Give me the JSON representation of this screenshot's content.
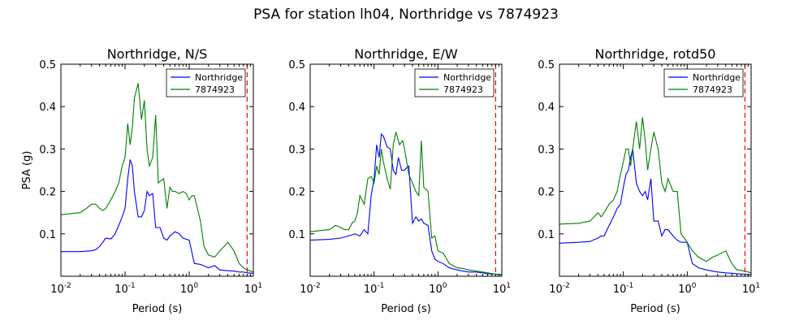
{
  "figure": {
    "title": "PSA for station lh04, Northridge vs 7874923"
  },
  "chart_data": [
    {
      "type": "line",
      "title": "Northridge, N/S",
      "xlabel": "Period (s)",
      "ylabel": "PSA (g)",
      "xscale": "log",
      "xlim": [
        0.01,
        10
      ],
      "ylim": [
        0,
        0.5
      ],
      "yticks": [
        "0.1",
        "0.2",
        "0.3",
        "0.4",
        "0.5"
      ],
      "xticks": [
        {
          "base": "10",
          "exp": "-2"
        },
        {
          "base": "10",
          "exp": "-1"
        },
        {
          "base": "10",
          "exp": "0"
        },
        {
          "base": "10",
          "exp": "1"
        }
      ],
      "legend": "top-right",
      "vline": {
        "x": 8.0,
        "color": "#ff0000",
        "style": "dashed"
      },
      "series": [
        {
          "name": "Northridge",
          "color": "#0000ff",
          "x": [
            0.01,
            0.02,
            0.03,
            0.035,
            0.04,
            0.045,
            0.05,
            0.06,
            0.07,
            0.08,
            0.09,
            0.1,
            0.11,
            0.12,
            0.13,
            0.14,
            0.16,
            0.18,
            0.2,
            0.22,
            0.24,
            0.27,
            0.3,
            0.35,
            0.4,
            0.45,
            0.5,
            0.6,
            0.7,
            0.8,
            1.0,
            1.2,
            1.5,
            2.0,
            2.5,
            3.0,
            4.0,
            5.0,
            6.0,
            7.0,
            8.0,
            10.0
          ],
          "y": [
            0.058,
            0.058,
            0.06,
            0.063,
            0.07,
            0.08,
            0.09,
            0.088,
            0.1,
            0.12,
            0.14,
            0.16,
            0.23,
            0.275,
            0.26,
            0.2,
            0.14,
            0.14,
            0.155,
            0.2,
            0.19,
            0.195,
            0.115,
            0.115,
            0.09,
            0.085,
            0.095,
            0.105,
            0.1,
            0.09,
            0.085,
            0.03,
            0.028,
            0.02,
            0.025,
            0.015,
            0.013,
            0.012,
            0.01,
            0.01,
            0.008,
            0.007
          ]
        },
        {
          "name": "7874923",
          "color": "#008000",
          "x": [
            0.01,
            0.02,
            0.025,
            0.03,
            0.035,
            0.04,
            0.045,
            0.05,
            0.06,
            0.07,
            0.08,
            0.09,
            0.1,
            0.11,
            0.12,
            0.13,
            0.14,
            0.16,
            0.18,
            0.2,
            0.22,
            0.24,
            0.27,
            0.3,
            0.33,
            0.36,
            0.4,
            0.45,
            0.5,
            0.55,
            0.6,
            0.7,
            0.8,
            0.9,
            1.0,
            1.1,
            1.2,
            1.5,
            1.7,
            2.0,
            2.5,
            3.0,
            3.5,
            4.0,
            5.0,
            6.0,
            7.0,
            8.0,
            10.0
          ],
          "y": [
            0.145,
            0.15,
            0.16,
            0.17,
            0.17,
            0.16,
            0.155,
            0.16,
            0.18,
            0.2,
            0.22,
            0.26,
            0.28,
            0.36,
            0.31,
            0.35,
            0.42,
            0.455,
            0.37,
            0.415,
            0.3,
            0.26,
            0.28,
            0.38,
            0.22,
            0.225,
            0.23,
            0.16,
            0.21,
            0.2,
            0.2,
            0.195,
            0.2,
            0.195,
            0.18,
            0.19,
            0.19,
            0.13,
            0.07,
            0.05,
            0.045,
            0.06,
            0.07,
            0.08,
            0.06,
            0.03,
            0.02,
            0.015,
            0.01
          ]
        }
      ]
    },
    {
      "type": "line",
      "title": "Northridge, E/W",
      "xlabel": "Period (s)",
      "ylabel": "",
      "xscale": "log",
      "xlim": [
        0.01,
        10
      ],
      "ylim": [
        0,
        0.5
      ],
      "yticks": [
        "0.1",
        "0.2",
        "0.3",
        "0.4",
        "0.5"
      ],
      "xticks": [
        {
          "base": "10",
          "exp": "-2"
        },
        {
          "base": "10",
          "exp": "-1"
        },
        {
          "base": "10",
          "exp": "0"
        },
        {
          "base": "10",
          "exp": "1"
        }
      ],
      "legend": "top-right",
      "vline": {
        "x": 8.0,
        "color": "#ff0000",
        "style": "dashed"
      },
      "series": [
        {
          "name": "Northridge",
          "color": "#0000ff",
          "x": [
            0.01,
            0.02,
            0.03,
            0.04,
            0.05,
            0.06,
            0.07,
            0.08,
            0.09,
            0.1,
            0.11,
            0.12,
            0.13,
            0.14,
            0.16,
            0.18,
            0.2,
            0.22,
            0.24,
            0.27,
            0.3,
            0.32,
            0.35,
            0.4,
            0.45,
            0.5,
            0.55,
            0.6,
            0.7,
            0.8,
            0.9,
            1.0,
            1.2,
            1.5,
            2.0,
            2.5,
            3.0,
            4.0,
            5.0,
            6.0,
            8.0,
            10.0
          ],
          "y": [
            0.085,
            0.087,
            0.09,
            0.095,
            0.1,
            0.095,
            0.11,
            0.1,
            0.19,
            0.23,
            0.31,
            0.28,
            0.335,
            0.33,
            0.305,
            0.3,
            0.25,
            0.24,
            0.28,
            0.25,
            0.25,
            0.255,
            0.26,
            0.125,
            0.14,
            0.13,
            0.135,
            0.125,
            0.12,
            0.06,
            0.04,
            0.035,
            0.03,
            0.02,
            0.015,
            0.012,
            0.01,
            0.01,
            0.008,
            0.006,
            0.005,
            0.004
          ]
        },
        {
          "name": "7874923",
          "color": "#008000",
          "x": [
            0.01,
            0.02,
            0.025,
            0.03,
            0.035,
            0.04,
            0.045,
            0.05,
            0.055,
            0.06,
            0.07,
            0.08,
            0.09,
            0.1,
            0.11,
            0.12,
            0.13,
            0.14,
            0.16,
            0.18,
            0.2,
            0.22,
            0.25,
            0.28,
            0.3,
            0.35,
            0.4,
            0.45,
            0.5,
            0.55,
            0.6,
            0.7,
            0.8,
            0.9,
            1.0,
            1.2,
            1.5,
            2.0,
            2.5,
            3.0,
            4.0,
            5.0,
            6.0,
            8.0,
            10.0
          ],
          "y": [
            0.105,
            0.11,
            0.12,
            0.115,
            0.11,
            0.11,
            0.125,
            0.13,
            0.15,
            0.19,
            0.17,
            0.23,
            0.235,
            0.22,
            0.26,
            0.24,
            0.3,
            0.27,
            0.23,
            0.205,
            0.31,
            0.34,
            0.31,
            0.32,
            0.3,
            0.24,
            0.22,
            0.2,
            0.19,
            0.32,
            0.21,
            0.2,
            0.09,
            0.095,
            0.06,
            0.055,
            0.03,
            0.02,
            0.018,
            0.015,
            0.012,
            0.01,
            0.008,
            0.005,
            0.003
          ]
        }
      ]
    },
    {
      "type": "line",
      "title": "Northridge, rotd50",
      "xlabel": "Period (s)",
      "ylabel": "",
      "xscale": "log",
      "xlim": [
        0.01,
        10
      ],
      "ylim": [
        0,
        0.5
      ],
      "yticks": [
        "0.1",
        "0.2",
        "0.3",
        "0.4",
        "0.5"
      ],
      "xticks": [
        {
          "base": "10",
          "exp": "-2"
        },
        {
          "base": "10",
          "exp": "-1"
        },
        {
          "base": "10",
          "exp": "0"
        },
        {
          "base": "10",
          "exp": "1"
        }
      ],
      "legend": "top-right",
      "vline": {
        "x": 8.0,
        "color": "#ff0000",
        "style": "dashed"
      },
      "series": [
        {
          "name": "Northridge",
          "color": "#0000ff",
          "x": [
            0.01,
            0.02,
            0.03,
            0.04,
            0.045,
            0.05,
            0.06,
            0.07,
            0.08,
            0.09,
            0.1,
            0.11,
            0.12,
            0.13,
            0.14,
            0.16,
            0.18,
            0.2,
            0.22,
            0.24,
            0.27,
            0.3,
            0.35,
            0.4,
            0.45,
            0.5,
            0.6,
            0.7,
            0.8,
            1.0,
            1.2,
            1.5,
            2.0,
            2.5,
            3.0,
            4.0,
            5.0,
            6.0,
            8.0,
            10.0
          ],
          "y": [
            0.078,
            0.08,
            0.082,
            0.09,
            0.095,
            0.095,
            0.12,
            0.14,
            0.16,
            0.17,
            0.21,
            0.24,
            0.25,
            0.28,
            0.3,
            0.22,
            0.2,
            0.19,
            0.2,
            0.18,
            0.23,
            0.13,
            0.13,
            0.095,
            0.11,
            0.11,
            0.095,
            0.085,
            0.08,
            0.08,
            0.03,
            0.02,
            0.015,
            0.012,
            0.01,
            0.008,
            0.007,
            0.006,
            0.005,
            0.004
          ]
        },
        {
          "name": "7874923",
          "color": "#008000",
          "x": [
            0.01,
            0.02,
            0.03,
            0.035,
            0.04,
            0.045,
            0.05,
            0.06,
            0.07,
            0.08,
            0.09,
            0.1,
            0.11,
            0.12,
            0.13,
            0.14,
            0.16,
            0.18,
            0.2,
            0.22,
            0.24,
            0.27,
            0.3,
            0.35,
            0.4,
            0.45,
            0.5,
            0.6,
            0.7,
            0.8,
            0.9,
            1.0,
            1.2,
            1.5,
            2.0,
            2.5,
            3.0,
            4.0,
            5.0,
            6.0,
            8.0,
            10.0
          ],
          "y": [
            0.123,
            0.125,
            0.13,
            0.14,
            0.15,
            0.14,
            0.15,
            0.17,
            0.18,
            0.2,
            0.24,
            0.27,
            0.3,
            0.3,
            0.26,
            0.3,
            0.365,
            0.3,
            0.375,
            0.32,
            0.25,
            0.3,
            0.34,
            0.3,
            0.22,
            0.2,
            0.23,
            0.2,
            0.2,
            0.1,
            0.09,
            0.08,
            0.06,
            0.045,
            0.035,
            0.045,
            0.05,
            0.06,
            0.03,
            0.015,
            0.012,
            0.008
          ]
        }
      ]
    }
  ]
}
